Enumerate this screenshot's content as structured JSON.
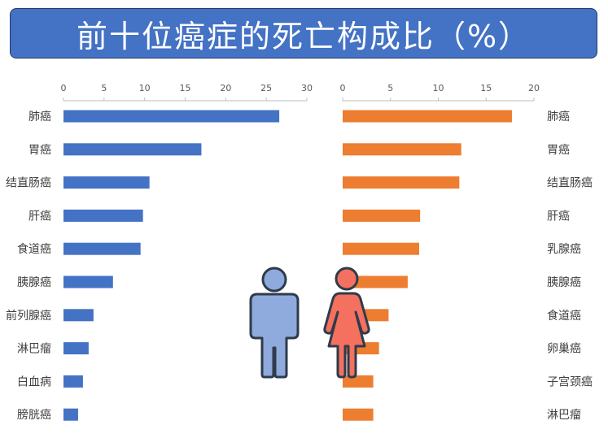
{
  "title": "前十位癌症的死亡构成比（%）",
  "colors": {
    "title_bg": "#4472C4",
    "male": "#4472C4",
    "female": "#ED7D31",
    "male_icon": "#8FAADC",
    "female_icon": "#F4705F",
    "icon_outline": "#2F3B4A"
  },
  "icons": {
    "male": "male-person-icon",
    "female": "female-person-icon"
  },
  "chart_data": [
    {
      "type": "bar",
      "orientation": "horizontal",
      "categories": [
        "肺癌",
        "胃癌",
        "结直肠癌",
        "肝癌",
        "食道癌",
        "胰腺癌",
        "前列腺癌",
        "淋巴瘤",
        "白血病",
        "膀胱癌"
      ],
      "values": [
        26.6,
        17.0,
        10.6,
        9.8,
        9.5,
        6.1,
        3.7,
        3.1,
        2.4,
        1.8
      ],
      "xlim": [
        0,
        30
      ],
      "ticks": [
        0,
        5,
        10,
        15,
        20,
        25,
        30
      ],
      "axis_position": "top",
      "color": "#4472C4"
    },
    {
      "type": "bar",
      "orientation": "horizontal",
      "reversed": true,
      "categories": [
        "肺癌",
        "胃癌",
        "结直肠癌",
        "肝癌",
        "乳腺癌",
        "胰腺癌",
        "食道癌",
        "卵巢癌",
        "子宫颈癌",
        "淋巴瘤"
      ],
      "values": [
        17.7,
        12.4,
        12.2,
        8.1,
        8.0,
        6.8,
        4.8,
        3.8,
        3.2,
        3.2
      ],
      "xlim": [
        0,
        20
      ],
      "ticks": [
        20,
        15,
        10,
        5,
        0
      ],
      "axis_position": "top",
      "color": "#ED7D31"
    }
  ]
}
